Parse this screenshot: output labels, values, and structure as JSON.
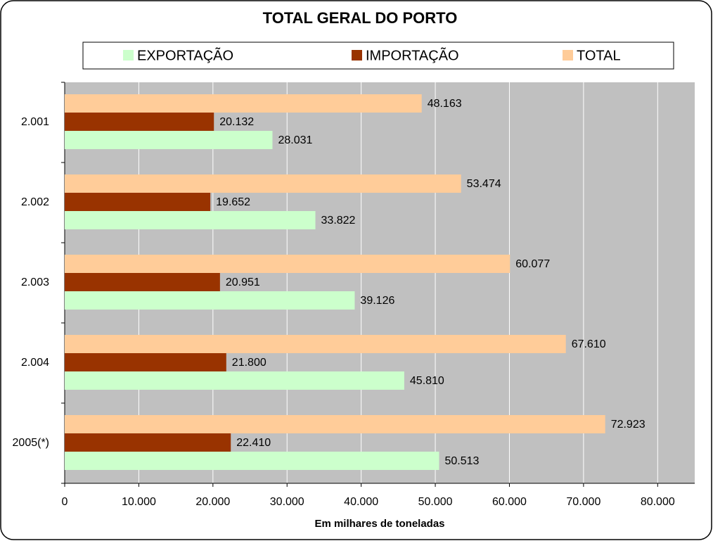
{
  "chart_data": {
    "type": "bar",
    "orientation": "horizontal",
    "title": "TOTAL GERAL DO PORTO",
    "x_label": "Em milhares de toneladas",
    "categories": [
      "2.001",
      "2.002",
      "2.003",
      "2.004",
      "2005(*)"
    ],
    "series": [
      {
        "name": "EXPORTAÇÃO",
        "color": "#ccffcc",
        "values": [
          28031,
          33822,
          39126,
          45810,
          50513
        ],
        "value_labels": [
          "28.031",
          "33.822",
          "39.126",
          "45.810",
          "50.513"
        ]
      },
      {
        "name": "IMPORTAÇÃO",
        "color": "#993300",
        "values": [
          20132,
          19652,
          20951,
          21800,
          22410
        ],
        "value_labels": [
          "20.132",
          "19.652",
          "20.951",
          "21.800",
          "22.410"
        ]
      },
      {
        "name": "TOTAL",
        "color": "#ffcc99",
        "values": [
          48163,
          53474,
          60077,
          67610,
          72923
        ],
        "value_labels": [
          "48.163",
          "53.474",
          "60.077",
          "67.610",
          "72.923"
        ]
      }
    ],
    "xlim": [
      0,
      85000
    ],
    "xticks": [
      0,
      {
        "value": 10000,
        "label": "10.000"
      },
      {
        "value": 20000,
        "label": "20.000"
      },
      {
        "value": 30000,
        "label": "30.000"
      },
      {
        "value": 40000,
        "label": "40.000"
      },
      {
        "value": 50000,
        "label": "50.000"
      },
      {
        "value": 60000,
        "label": "60.000"
      },
      {
        "value": 70000,
        "label": "70.000"
      },
      {
        "value": 80000,
        "label": "80.000"
      }
    ],
    "grid": true,
    "plot_background": "#c0c0c0"
  }
}
